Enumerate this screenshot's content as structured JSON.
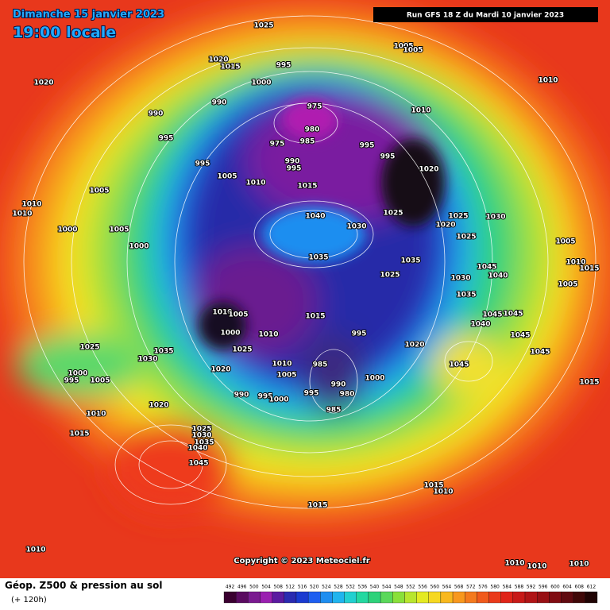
{
  "header": {
    "date": "Dimanche 15 janvier 2023",
    "time": "19:00 locale",
    "run": "Run GFS 18 Z du Mardi 10 janvier 2023"
  },
  "footer": {
    "copyright": "Copyright © 2023 Meteociel.fr",
    "legend_title": "Géop. Z500 & pression au sol",
    "lead_time": "(+ 120h)"
  },
  "colorbar": {
    "labels": [
      492,
      496,
      500,
      504,
      508,
      512,
      516,
      520,
      524,
      528,
      532,
      536,
      540,
      544,
      548,
      552,
      556,
      560,
      564,
      568,
      572,
      576,
      580,
      584,
      588,
      592,
      596,
      600,
      604,
      608,
      612
    ],
    "colors": [
      "#3a0030",
      "#5a0a60",
      "#7a1a90",
      "#9a20b0",
      "#5a1aa0",
      "#2a2ab0",
      "#1a3ad0",
      "#1e5ef0",
      "#1e8ef0",
      "#20b4ee",
      "#22d0d0",
      "#24d8a0",
      "#2ed27a",
      "#5ad85a",
      "#8ae03a",
      "#b8e62e",
      "#e4ea22",
      "#f6d820",
      "#f8b81e",
      "#f8981e",
      "#f47a1e",
      "#f05a1c",
      "#ea3a1a",
      "#e02418",
      "#c81a18",
      "#b01416",
      "#981014",
      "#800c12",
      "#600a10",
      "#400808",
      "#200404"
    ]
  },
  "pressure_labels": [
    1025,
    1020,
    1020,
    1015,
    995,
    1000,
    1005,
    1005,
    1010,
    990,
    990,
    995,
    975,
    980,
    975,
    985,
    990,
    995,
    995,
    995,
    1010,
    995,
    1005,
    1010,
    1015,
    1020,
    1005,
    1010,
    1010,
    1000,
    1005,
    1000,
    1040,
    1030,
    1025,
    1025,
    1020,
    1025,
    1030,
    1035,
    1035,
    1025,
    1005,
    1010,
    1045,
    1040,
    1030,
    1005,
    1035,
    1015,
    1010,
    1005,
    1015,
    1000,
    1010,
    1025,
    995,
    1020,
    1040,
    1045,
    1045,
    1045,
    1045,
    1025,
    1035,
    1030,
    1010,
    985,
    1005,
    1020,
    1045,
    1000,
    995,
    1005,
    990,
    1000,
    980,
    995,
    990,
    995,
    1000,
    1015,
    985,
    1020,
    1010,
    1025,
    1030,
    1035,
    1040,
    1015,
    1045,
    1015,
    1010,
    1015,
    1010,
    1010,
    1010,
    1010
  ]
}
